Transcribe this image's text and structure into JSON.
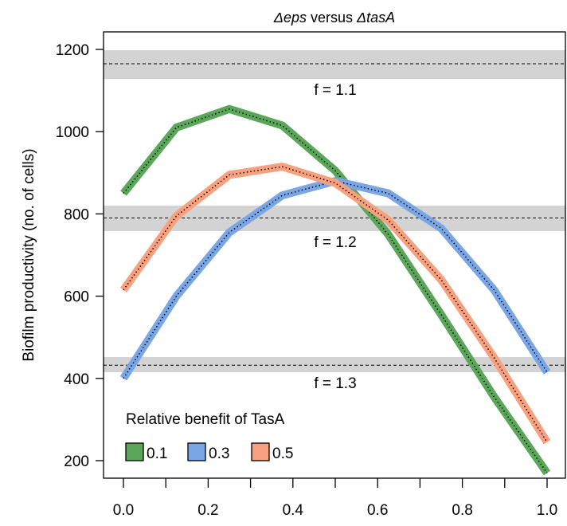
{
  "chart_data": {
    "type": "line",
    "title_parts": [
      "Δeps",
      " versus ",
      "ΔtasA"
    ],
    "ylabel": "Biofilm productivity (no. of cells)",
    "xlabel": "",
    "xlim": [
      0.0,
      1.0
    ],
    "ylim": [
      175,
      1280
    ],
    "x_ticks": [
      0.0,
      0.2,
      0.4,
      0.6,
      0.8,
      1.0
    ],
    "x_tick_labels": [
      "0.0",
      "0.2",
      "0.4",
      "0.6",
      "0.8",
      "1.0"
    ],
    "x_minor_ticks": [
      0.1,
      0.3,
      0.5,
      0.7,
      0.9
    ],
    "y_ticks": [
      200,
      400,
      600,
      800,
      1000,
      1200
    ],
    "y_tick_labels": [
      "200",
      "400",
      "600",
      "800",
      "1000",
      "1200"
    ],
    "x": [
      0.0,
      0.125,
      0.25,
      0.375,
      0.5,
      0.625,
      0.75,
      0.875,
      1.0
    ],
    "series": [
      {
        "legend_label": "0.1",
        "color": "#5aa75a",
        "values": [
          850,
          1010,
          1055,
          1015,
          905,
          750,
          555,
          355,
          170
        ]
      },
      {
        "legend_label": "0.3",
        "color": "#7aa6e6",
        "values": [
          400,
          600,
          755,
          845,
          880,
          850,
          765,
          615,
          415
        ]
      },
      {
        "legend_label": "0.5",
        "color": "#f9a07e",
        "values": [
          615,
          795,
          895,
          915,
          875,
          785,
          640,
          450,
          245
        ]
      }
    ],
    "reference_bands": [
      {
        "label": "f = 1.1",
        "y": 1165,
        "band": [
          1128,
          1198
        ]
      },
      {
        "label": "f = 1.2",
        "y": 790,
        "band": [
          758,
          820
        ]
      },
      {
        "label": "f = 1.3",
        "y": 432,
        "band": [
          415,
          452
        ]
      }
    ],
    "band_color": "#d3d3d3",
    "legend": {
      "title": "Relative benefit of TasA",
      "position": "bottom-left"
    },
    "grid": false
  }
}
